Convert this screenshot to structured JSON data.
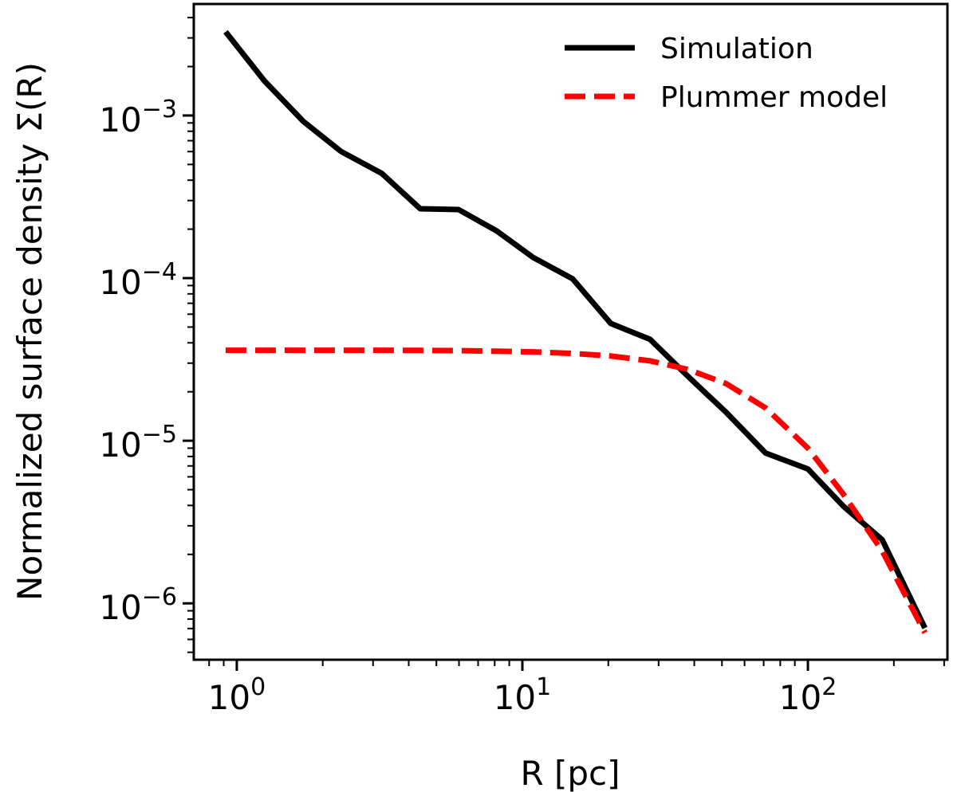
{
  "chart_data": {
    "type": "line",
    "title": "",
    "xlabel": "R [pc]",
    "ylabel": "Normalized surface density Σ(R)",
    "xscale": "log",
    "yscale": "log",
    "xlim": [
      0.707,
      308
    ],
    "ylim": [
      4.5e-07,
      0.00485
    ],
    "grid": false,
    "legend_position": "top-right",
    "x_ticks": [
      {
        "value": 1,
        "base": "10",
        "exp": "0"
      },
      {
        "value": 10,
        "base": "10",
        "exp": "1"
      },
      {
        "value": 100,
        "base": "10",
        "exp": "2"
      }
    ],
    "y_ticks": [
      {
        "value": 0.001,
        "base": "10",
        "exp": "−3"
      },
      {
        "value": 0.0001,
        "base": "10",
        "exp": "−4"
      },
      {
        "value": 1e-05,
        "base": "10",
        "exp": "−5"
      },
      {
        "value": 1e-06,
        "base": "10",
        "exp": "−6"
      }
    ],
    "series": [
      {
        "name": "Simulation",
        "color": "#000000",
        "style": "solid",
        "x": [
          0.914,
          1.25,
          1.71,
          2.32,
          3.22,
          4.39,
          5.98,
          8.14,
          10.9,
          15.0,
          20.4,
          28.0,
          37.9,
          51.6,
          71.1,
          100,
          133,
          182,
          257
        ],
        "y": [
          0.00327,
          0.00163,
          0.00092,
          0.0006,
          0.00044,
          0.000267,
          0.000264,
          0.000195,
          0.000134,
          9.9e-05,
          5.26e-05,
          4.2e-05,
          2.5e-05,
          1.5e-05,
          8.4e-06,
          6.7e-06,
          3.96e-06,
          2.46e-06,
          7.05e-07
        ]
      },
      {
        "name": "Plummer model",
        "color": "#ff0000",
        "style": "dashed",
        "x": [
          0.914,
          1.25,
          1.71,
          2.32,
          3.22,
          4.39,
          5.98,
          8.14,
          10.9,
          15.0,
          20.4,
          28.0,
          37.9,
          51.6,
          71.1,
          100,
          133,
          182,
          257
        ],
        "y": [
          3.6e-05,
          3.6e-05,
          3.6e-05,
          3.6e-05,
          3.6e-05,
          3.59e-05,
          3.58e-05,
          3.55e-05,
          3.52e-05,
          3.44e-05,
          3.32e-05,
          3.1e-05,
          2.75e-05,
          2.25e-05,
          1.59e-05,
          9e-06,
          4.7e-06,
          2.1e-06,
          6.6e-07
        ]
      }
    ]
  }
}
